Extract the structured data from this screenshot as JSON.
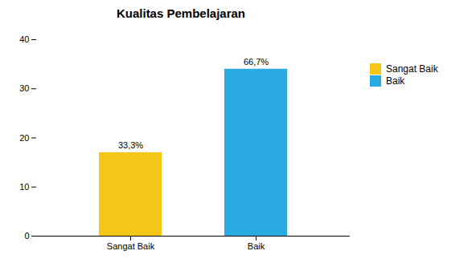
{
  "chart_data": {
    "type": "bar",
    "title": "Kualitas Pembelajaran",
    "categories": [
      "Sangat Baik",
      "Baik"
    ],
    "values": [
      17,
      34
    ],
    "value_labels": [
      "33,3%",
      "66,7%"
    ],
    "data_labels": true,
    "colors": [
      "#F5C518",
      "#29ABE2"
    ],
    "ylim": [
      0,
      40
    ],
    "yticks": [
      0,
      10,
      20,
      30,
      40
    ],
    "grid": false,
    "legend": "right"
  }
}
